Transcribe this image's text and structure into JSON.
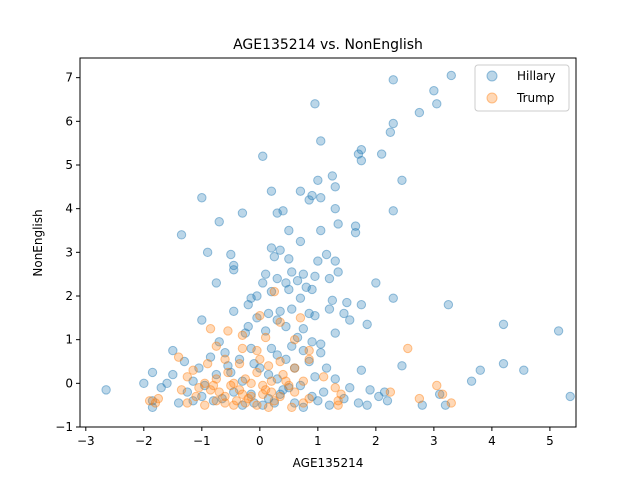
{
  "chart_data": {
    "type": "scatter",
    "title": "AGE135214 vs. NonEnglish",
    "xlabel": "AGE135214",
    "ylabel": "NonEnglish",
    "xlim": [
      -3.1,
      5.45
    ],
    "ylim": [
      -1,
      7.45
    ],
    "xticks": [
      -3,
      -2,
      -1,
      0,
      1,
      2,
      3,
      4,
      5
    ],
    "yticks": [
      -1,
      0,
      1,
      2,
      3,
      4,
      5,
      6,
      7
    ],
    "grid": false,
    "legend_position": "top-right",
    "series": [
      {
        "name": "Hillary",
        "color": "#1f77b4",
        "points": [
          [
            3.3,
            7.05
          ],
          [
            2.3,
            6.95
          ],
          [
            3.0,
            6.7
          ],
          [
            0.95,
            6.4
          ],
          [
            3.05,
            6.4
          ],
          [
            2.75,
            6.2
          ],
          [
            2.3,
            5.95
          ],
          [
            2.25,
            5.75
          ],
          [
            1.05,
            5.55
          ],
          [
            1.75,
            5.35
          ],
          [
            1.7,
            5.25
          ],
          [
            2.1,
            5.25
          ],
          [
            1.75,
            5.1
          ],
          [
            0.05,
            5.2
          ],
          [
            1.25,
            4.75
          ],
          [
            1.0,
            4.65
          ],
          [
            2.45,
            4.65
          ],
          [
            1.3,
            4.5
          ],
          [
            0.7,
            4.4
          ],
          [
            0.2,
            4.4
          ],
          [
            0.9,
            4.3
          ],
          [
            0.85,
            4.2
          ],
          [
            1.05,
            4.25
          ],
          [
            -1.0,
            4.25
          ],
          [
            0.4,
            3.95
          ],
          [
            0.3,
            3.9
          ],
          [
            -0.3,
            3.9
          ],
          [
            1.3,
            4.0
          ],
          [
            2.3,
            3.95
          ],
          [
            -0.7,
            3.7
          ],
          [
            1.35,
            3.65
          ],
          [
            0.5,
            3.5
          ],
          [
            1.05,
            3.5
          ],
          [
            1.65,
            3.6
          ],
          [
            1.65,
            3.45
          ],
          [
            -1.35,
            3.4
          ],
          [
            0.7,
            3.25
          ],
          [
            0.2,
            3.1
          ],
          [
            0.35,
            3.05
          ],
          [
            -0.5,
            2.95
          ],
          [
            -0.9,
            3.0
          ],
          [
            1.15,
            2.95
          ],
          [
            0.25,
            2.9
          ],
          [
            0.5,
            2.85
          ],
          [
            -0.45,
            2.7
          ],
          [
            -0.45,
            2.6
          ],
          [
            0.55,
            2.55
          ],
          [
            1.35,
            2.55
          ],
          [
            0.75,
            2.5
          ],
          [
            0.1,
            2.5
          ],
          [
            0.95,
            2.45
          ],
          [
            0.3,
            2.4
          ],
          [
            0.65,
            2.35
          ],
          [
            1.2,
            2.4
          ],
          [
            1.0,
            2.8
          ],
          [
            1.3,
            2.8
          ],
          [
            -0.75,
            2.3
          ],
          [
            0.05,
            2.3
          ],
          [
            0.45,
            2.3
          ],
          [
            2.0,
            2.3
          ],
          [
            0.8,
            2.2
          ],
          [
            0.9,
            2.15
          ],
          [
            0.5,
            2.15
          ],
          [
            0.2,
            2.1
          ],
          [
            -0.05,
            2.0
          ],
          [
            -0.15,
            1.95
          ],
          [
            0.7,
            1.95
          ],
          [
            1.25,
            1.9
          ],
          [
            1.5,
            1.85
          ],
          [
            2.3,
            1.95
          ],
          [
            3.25,
            1.8
          ],
          [
            -0.2,
            1.8
          ],
          [
            0.55,
            1.7
          ],
          [
            0.35,
            1.65
          ],
          [
            1.2,
            1.7
          ],
          [
            1.75,
            1.8
          ],
          [
            0.15,
            1.6
          ],
          [
            -0.45,
            1.65
          ],
          [
            0.85,
            1.6
          ],
          [
            0.95,
            1.55
          ],
          [
            -0.05,
            1.5
          ],
          [
            0.3,
            1.45
          ],
          [
            1.45,
            1.6
          ],
          [
            1.55,
            1.45
          ],
          [
            1.85,
            1.35
          ],
          [
            4.2,
            1.35
          ],
          [
            5.15,
            1.2
          ],
          [
            -1.0,
            1.45
          ],
          [
            -0.2,
            1.3
          ],
          [
            0.45,
            1.3
          ],
          [
            0.75,
            1.25
          ],
          [
            1.3,
            1.15
          ],
          [
            0.1,
            1.2
          ],
          [
            -0.25,
            1.15
          ],
          [
            0.65,
            1.05
          ],
          [
            0.9,
            0.95
          ],
          [
            1.05,
            0.9
          ],
          [
            -0.7,
            0.95
          ],
          [
            0.55,
            0.85
          ],
          [
            0.2,
            0.8
          ],
          [
            -0.15,
            0.8
          ],
          [
            0.75,
            0.75
          ],
          [
            -1.5,
            0.75
          ],
          [
            -0.6,
            0.7
          ],
          [
            1.05,
            0.7
          ],
          [
            0.3,
            0.65
          ],
          [
            -0.85,
            0.6
          ],
          [
            -0.35,
            0.55
          ],
          [
            0.45,
            0.55
          ],
          [
            0.85,
            0.5
          ],
          [
            -1.3,
            0.5
          ],
          [
            -0.1,
            0.45
          ],
          [
            2.45,
            0.4
          ],
          [
            -0.55,
            0.4
          ],
          [
            0.6,
            0.35
          ],
          [
            -1.05,
            0.35
          ],
          [
            1.75,
            0.3
          ],
          [
            4.2,
            0.45
          ],
          [
            4.55,
            0.3
          ],
          [
            3.8,
            0.3
          ],
          [
            3.65,
            0.05
          ],
          [
            -1.85,
            0.25
          ],
          [
            -1.5,
            0.2
          ],
          [
            -0.75,
            0.2
          ],
          [
            0.15,
            0.2
          ],
          [
            0.95,
            0.15
          ],
          [
            1.3,
            0.1
          ],
          [
            -1.15,
            0.05
          ],
          [
            -0.3,
            0.05
          ],
          [
            0.3,
            0.1
          ],
          [
            -1.6,
            0.0
          ],
          [
            -2.0,
            0.0
          ],
          [
            -2.65,
            -0.15
          ],
          [
            -1.7,
            -0.1
          ],
          [
            -0.95,
            -0.05
          ],
          [
            0.7,
            -0.05
          ],
          [
            1.55,
            -0.1
          ],
          [
            2.15,
            -0.2
          ],
          [
            2.05,
            -0.3
          ],
          [
            1.9,
            -0.15
          ],
          [
            -1.25,
            -0.2
          ],
          [
            -0.45,
            -0.2
          ],
          [
            0.4,
            -0.15
          ],
          [
            1.1,
            -0.2
          ],
          [
            3.1,
            -0.25
          ],
          [
            5.35,
            -0.3
          ],
          [
            -1.85,
            -0.4
          ],
          [
            -0.65,
            -0.35
          ],
          [
            0.15,
            -0.35
          ],
          [
            0.9,
            -0.3
          ],
          [
            1.45,
            -0.35
          ],
          [
            2.2,
            -0.4
          ],
          [
            -1.4,
            -0.45
          ],
          [
            -0.1,
            -0.45
          ],
          [
            0.6,
            -0.45
          ],
          [
            1.7,
            -0.45
          ],
          [
            2.8,
            -0.5
          ],
          [
            -1.85,
            -0.55
          ],
          [
            -0.3,
            -0.5
          ],
          [
            1.2,
            -0.5
          ],
          [
            3.2,
            -0.5
          ],
          [
            0.75,
            -0.55
          ],
          [
            -1.0,
            -0.3
          ],
          [
            -0.15,
            -0.25
          ],
          [
            0.35,
            -0.25
          ],
          [
            -0.8,
            -0.4
          ],
          [
            1.0,
            -0.4
          ],
          [
            0.5,
            -0.1
          ],
          [
            -0.5,
            0.25
          ],
          [
            0.0,
            0.35
          ],
          [
            1.15,
            0.35
          ],
          [
            0.25,
            -0.45
          ],
          [
            -1.15,
            -0.4
          ],
          [
            1.85,
            -0.5
          ],
          [
            0.05,
            -0.5
          ]
        ]
      },
      {
        "name": "Trump",
        "color": "#ff7f0e",
        "points": [
          [
            0.25,
            2.1
          ],
          [
            0.0,
            1.55
          ],
          [
            0.7,
            1.5
          ],
          [
            0.35,
            1.4
          ],
          [
            -0.85,
            1.25
          ],
          [
            -0.55,
            1.2
          ],
          [
            -0.3,
            1.1
          ],
          [
            0.1,
            1.05
          ],
          [
            0.6,
            1.0
          ],
          [
            -0.75,
            0.85
          ],
          [
            -0.3,
            0.8
          ],
          [
            0.85,
            0.75
          ],
          [
            -0.05,
            0.75
          ],
          [
            2.55,
            0.8
          ],
          [
            -1.4,
            0.6
          ],
          [
            -0.6,
            0.55
          ],
          [
            0.0,
            0.55
          ],
          [
            0.35,
            0.5
          ],
          [
            0.85,
            0.55
          ],
          [
            -0.9,
            0.45
          ],
          [
            -0.35,
            0.45
          ],
          [
            0.15,
            0.4
          ],
          [
            0.6,
            0.35
          ],
          [
            -1.15,
            0.3
          ],
          [
            -0.55,
            0.25
          ],
          [
            -0.05,
            0.25
          ],
          [
            0.4,
            0.2
          ],
          [
            1.1,
            0.15
          ],
          [
            -1.25,
            0.15
          ],
          [
            -0.75,
            0.1
          ],
          [
            -0.25,
            0.1
          ],
          [
            0.2,
            0.05
          ],
          [
            0.75,
            0.05
          ],
          [
            -0.95,
            0.0
          ],
          [
            -0.45,
            0.0
          ],
          [
            0.05,
            -0.05
          ],
          [
            0.5,
            -0.05
          ],
          [
            1.3,
            -0.1
          ],
          [
            3.05,
            -0.05
          ],
          [
            -1.35,
            -0.15
          ],
          [
            -0.85,
            -0.15
          ],
          [
            -0.35,
            -0.15
          ],
          [
            0.1,
            -0.15
          ],
          [
            0.6,
            -0.2
          ],
          [
            1.4,
            -0.25
          ],
          [
            2.25,
            -0.2
          ],
          [
            3.15,
            -0.25
          ],
          [
            -1.75,
            -0.35
          ],
          [
            -1.1,
            -0.3
          ],
          [
            -0.6,
            -0.3
          ],
          [
            -0.15,
            -0.3
          ],
          [
            0.35,
            -0.3
          ],
          [
            0.85,
            -0.35
          ],
          [
            1.35,
            -0.4
          ],
          [
            2.75,
            -0.35
          ],
          [
            -1.8,
            -0.45
          ],
          [
            -1.25,
            -0.45
          ],
          [
            -0.75,
            -0.4
          ],
          [
            -0.25,
            -0.45
          ],
          [
            0.25,
            -0.4
          ],
          [
            0.75,
            -0.45
          ],
          [
            1.35,
            -0.5
          ],
          [
            3.3,
            -0.45
          ],
          [
            -1.9,
            -0.4
          ],
          [
            -0.45,
            -0.5
          ],
          [
            -0.05,
            -0.5
          ],
          [
            0.55,
            -0.55
          ],
          [
            -0.95,
            -0.5
          ],
          [
            -0.5,
            -0.05
          ],
          [
            -0.2,
            -0.35
          ],
          [
            0.05,
            -0.25
          ],
          [
            -0.7,
            -0.2
          ],
          [
            -0.4,
            -0.4
          ],
          [
            0.2,
            -0.2
          ],
          [
            -1.05,
            -0.1
          ],
          [
            0.45,
            0.05
          ],
          [
            -0.15,
            0.0
          ],
          [
            -0.8,
            -0.05
          ],
          [
            -0.3,
            -0.25
          ],
          [
            -0.6,
            -0.45
          ],
          [
            0.15,
            -0.55
          ]
        ]
      }
    ]
  }
}
